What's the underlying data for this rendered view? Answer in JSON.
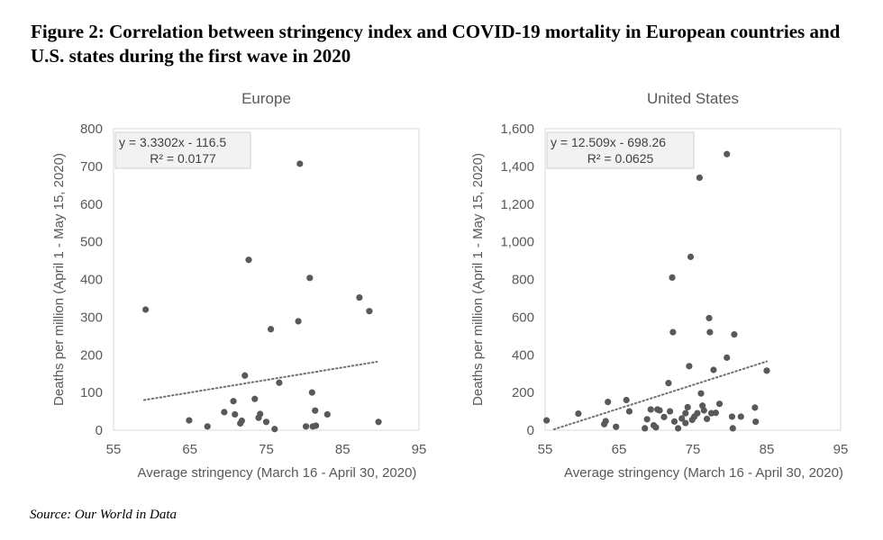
{
  "figure": {
    "title": "Figure 2: Correlation between stringency index and COVID-19 mortality in European countries and U.S. states during the first wave in 2020",
    "source": "Source: Our World in Data"
  },
  "chart_data": [
    {
      "type": "scatter",
      "title": "Europe",
      "xlabel": "Average stringency (March 16 - April 30, 2020)",
      "ylabel": "Deaths per million (April 1 - May 15, 2020)",
      "xlim": [
        55,
        95
      ],
      "ylim": [
        0,
        800
      ],
      "xticks": [
        55,
        65,
        75,
        85,
        95
      ],
      "yticks": [
        0,
        100,
        200,
        300,
        400,
        500,
        600,
        700,
        800
      ],
      "ytick_labels": [
        "0",
        "100",
        "200",
        "300",
        "400",
        "500",
        "600",
        "700",
        "800"
      ],
      "trendline": {
        "equation": "y = 3.3302x - 116.5",
        "r2": "R² = 0.0177",
        "slope": 3.3302,
        "intercept": -116.5,
        "x_range": [
          59,
          89.5
        ],
        "style": "dotted"
      },
      "points": [
        [
          59.2,
          320
        ],
        [
          64.9,
          26
        ],
        [
          67.3,
          10
        ],
        [
          69.5,
          48
        ],
        [
          70.7,
          77
        ],
        [
          70.9,
          42
        ],
        [
          71.6,
          18
        ],
        [
          71.8,
          25
        ],
        [
          72.2,
          145
        ],
        [
          72.7,
          452
        ],
        [
          73.5,
          83
        ],
        [
          74.0,
          33
        ],
        [
          74.2,
          43
        ],
        [
          75.0,
          22
        ],
        [
          75.6,
          268
        ],
        [
          76.1,
          3
        ],
        [
          76.7,
          126
        ],
        [
          79.2,
          289
        ],
        [
          79.4,
          707
        ],
        [
          80.2,
          10
        ],
        [
          80.7,
          404
        ],
        [
          81.0,
          100
        ],
        [
          81.1,
          10
        ],
        [
          81.4,
          52
        ],
        [
          81.5,
          12
        ],
        [
          83.0,
          42
        ],
        [
          87.2,
          352
        ],
        [
          88.5,
          316
        ],
        [
          89.7,
          22
        ]
      ]
    },
    {
      "type": "scatter",
      "title": "United States",
      "xlabel": "Average stringency (March 16 - April 30, 2020)",
      "ylabel": "Deaths per million (April 1 - May 15, 2020)",
      "xlim": [
        55,
        95
      ],
      "ylim": [
        0,
        1600
      ],
      "xticks": [
        55,
        65,
        75,
        85,
        95
      ],
      "yticks": [
        0,
        200,
        400,
        600,
        800,
        1000,
        1200,
        1400,
        1600
      ],
      "ytick_labels": [
        "0",
        "200",
        "400",
        "600",
        "800",
        "1,000",
        "1,200",
        "1,400",
        "1,600"
      ],
      "trendline": {
        "equation": "y = 12.509x - 698.26",
        "r2": "R² = 0.0625",
        "slope": 12.509,
        "intercept": -698.26,
        "x_range": [
          56.2,
          85
        ],
        "style": "dotted"
      },
      "points": [
        [
          55.2,
          52
        ],
        [
          59.5,
          88
        ],
        [
          63.0,
          32
        ],
        [
          63.2,
          48
        ],
        [
          63.5,
          150
        ],
        [
          64.6,
          18
        ],
        [
          66.0,
          160
        ],
        [
          66.4,
          100
        ],
        [
          68.5,
          10
        ],
        [
          68.8,
          58
        ],
        [
          69.3,
          110
        ],
        [
          69.7,
          26
        ],
        [
          70.0,
          15
        ],
        [
          70.2,
          110
        ],
        [
          70.5,
          105
        ],
        [
          71.1,
          70
        ],
        [
          71.7,
          250
        ],
        [
          71.9,
          100
        ],
        [
          72.2,
          810
        ],
        [
          72.3,
          520
        ],
        [
          72.5,
          46
        ],
        [
          73.0,
          10
        ],
        [
          73.5,
          62
        ],
        [
          74.0,
          90
        ],
        [
          74.0,
          38
        ],
        [
          74.3,
          122
        ],
        [
          74.5,
          340
        ],
        [
          74.7,
          920
        ],
        [
          74.9,
          55
        ],
        [
          75.2,
          72
        ],
        [
          75.6,
          90
        ],
        [
          75.9,
          1340
        ],
        [
          76.1,
          195
        ],
        [
          76.3,
          130
        ],
        [
          76.5,
          105
        ],
        [
          76.9,
          60
        ],
        [
          77.2,
          595
        ],
        [
          77.3,
          520
        ],
        [
          77.5,
          90
        ],
        [
          77.8,
          320
        ],
        [
          78.1,
          92
        ],
        [
          78.6,
          140
        ],
        [
          79.6,
          385
        ],
        [
          79.6,
          1465
        ],
        [
          80.3,
          72
        ],
        [
          80.6,
          508
        ],
        [
          80.4,
          10
        ],
        [
          81.5,
          72
        ],
        [
          83.4,
          120
        ],
        [
          83.5,
          45
        ],
        [
          85.0,
          316
        ]
      ]
    }
  ]
}
